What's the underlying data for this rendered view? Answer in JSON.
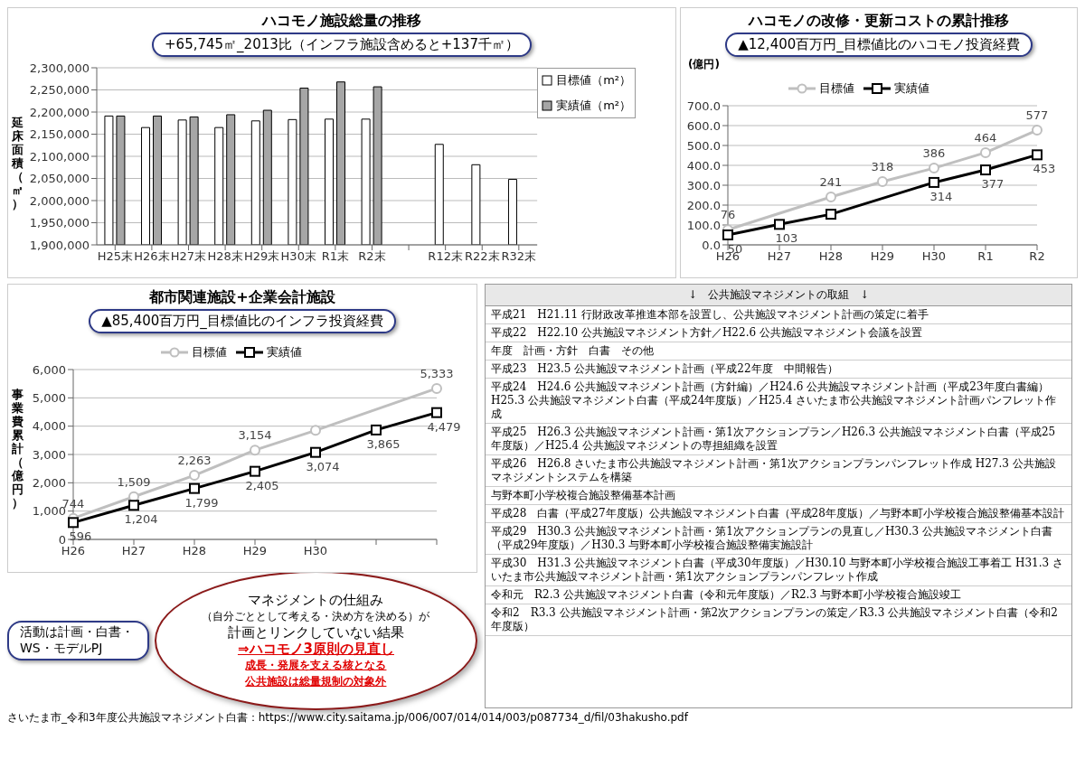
{
  "chart_data": [
    {
      "type": "bar",
      "title": "ハコモノ施設総量の推移",
      "ylabel": "延床面積（㎡）",
      "categories": [
        "H25末",
        "H26末",
        "H27末",
        "H28末",
        "H29末",
        "H30末",
        "R1末",
        "R2末",
        null,
        "R12末",
        "R22末",
        "R32末"
      ],
      "series": [
        {
          "name": "目標値（m²）",
          "color": "#ffffff",
          "values": [
            2191000,
            2165000,
            2182000,
            2165000,
            2180000,
            2183000,
            2184000,
            2184000,
            null,
            2127000,
            2081000,
            2048000
          ]
        },
        {
          "name": "実績値（m²）",
          "color": "#a6a6a6",
          "values": [
            2191000,
            2191000,
            2189000,
            2194000,
            2204000,
            2254000,
            2268000,
            2257000,
            null,
            null,
            null,
            null
          ]
        }
      ],
      "ylim": [
        1900000,
        2300000
      ],
      "yticks": [
        {
          "value": 1900000,
          "label": "1,900,000"
        },
        {
          "value": 1950000,
          "label": "1,950,000"
        },
        {
          "value": 2000000,
          "label": "2,000,000"
        },
        {
          "value": 2050000,
          "label": "2,050,000"
        },
        {
          "value": 2100000,
          "label": "2,100,000"
        },
        {
          "value": 2150000,
          "label": "2,150,000"
        },
        {
          "value": 2200000,
          "label": "2,200,000"
        },
        {
          "value": 2250000,
          "label": "2,250,000"
        },
        {
          "value": 2300000,
          "label": "2,300,000"
        }
      ],
      "grid": "y",
      "legend": "top right",
      "annotations": [
        "+65,745㎡_2013比（インフラ施設含めると+137千㎡）"
      ]
    },
    {
      "type": "line",
      "title": "ハコモノの改修・更新コストの累計推移",
      "ylabel": "(億円)",
      "categories": [
        "H26",
        "H27",
        "H28",
        "H29",
        "H30",
        "R1",
        "R2"
      ],
      "series": [
        {
          "name": "目標値",
          "color": "#bfbfbf",
          "marker": "circle",
          "values": [
            76,
            null,
            241,
            318,
            386,
            464,
            577
          ],
          "value_labels": [
            "76",
            null,
            "241",
            "318",
            "386",
            "464",
            "577"
          ]
        },
        {
          "name": "実績値",
          "color": "#000000",
          "marker": "square",
          "values": [
            50,
            103,
            154,
            null,
            314,
            377,
            453
          ],
          "value_labels": [
            "50",
            "103",
            null,
            null,
            "314",
            "377",
            "453"
          ]
        }
      ],
      "ylim": [
        0,
        700
      ],
      "yticks": [
        {
          "value": 0,
          "label": "0.0"
        },
        {
          "value": 100,
          "label": "100.0"
        },
        {
          "value": 200,
          "label": "200.0"
        },
        {
          "value": 300,
          "label": "300.0"
        },
        {
          "value": 400,
          "label": "400.0"
        },
        {
          "value": 500,
          "label": "500.0"
        },
        {
          "value": 600,
          "label": "600.0"
        },
        {
          "value": 700,
          "label": "700.0"
        }
      ],
      "grid": "y",
      "legend": "top",
      "annotations": [
        "▲12,400百万円_目標値比のハコモノ投資経費"
      ]
    },
    {
      "type": "line",
      "title": "都市関連施設+企業会計施設",
      "ylabel": "事業費累計（億円）",
      "categories": [
        "H26",
        "H27",
        "H28",
        "H29",
        "H30",
        null,
        null
      ],
      "series": [
        {
          "name": "目標値",
          "color": "#bfbfbf",
          "marker": "circle",
          "values": [
            744,
            1509,
            2263,
            3154,
            3850,
            null,
            5333
          ],
          "value_labels": [
            "744",
            "1,509",
            "2,263",
            "3,154",
            null,
            null,
            "5,333"
          ]
        },
        {
          "name": "実績値",
          "color": "#000000",
          "marker": "square",
          "values": [
            596,
            1204,
            1799,
            2405,
            3074,
            3865,
            4479
          ],
          "value_labels": [
            "596",
            "1,204",
            "1,799",
            "2,405",
            "3,074",
            "3,865",
            "4,479"
          ]
        }
      ],
      "ylim": [
        0,
        6000
      ],
      "yticks": [
        0,
        {
          "value": 1000,
          "label": "1,000"
        },
        {
          "value": 2000,
          "label": "2,000"
        },
        {
          "value": 3000,
          "label": "3,000"
        },
        {
          "value": 4000,
          "label": "4,000"
        },
        {
          "value": 5000,
          "label": "5,000"
        },
        {
          "value": 6000,
          "label": "6,000"
        }
      ],
      "grid": "y",
      "legend": "top",
      "annotations": [
        "▲85,400百万円_目標値比のインフラ投資経費"
      ]
    },
    {
      "type": "other",
      "title": "↓　公共施設マネジメントの取組　↓",
      "annotations": [
        "平成21　H21.11 行財政改革推進本部を設置し、公共施設マネジメント計画の策定に着手",
        "平成22　H22.10 公共施設マネジメント方針／H22.6 公共施設マネジメント会議を設置",
        "年度　計画・方針　白書　その他",
        "平成23　H23.5 公共施設マネジメント計画（平成22年度　中間報告）",
        "平成24　H24.6 公共施設マネジメント計画（方針編）／H24.6 公共施設マネジメント計画（平成23年度白書編）H25.3 公共施設マネジメント白書（平成24年度版）／H25.4 さいたま市公共施設マネジメント計画パンフレット作成",
        "平成25　H26.3 公共施設マネジメント計画・第1次アクションプラン／H26.3 公共施設マネジメント白書（平成25年度版）／H25.4 公共施設マネジメントの専担組織を設置",
        "平成26　H26.8 さいたま市公共施設マネジメント計画・第1次アクションプランパンフレット作成 H27.3 公共施設マネジメントシステムを構築",
        "与野本町小学校複合施設整備基本計画",
        "平成28　白書（平成27年度版）公共施設マネジメント白書（平成28年度版）／与野本町小学校複合施設整備基本設計",
        "平成29　H30.3 公共施設マネジメント計画・第1次アクションプランの見直し／H30.3 公共施設マネジメント白書（平成29年度版）／H30.3 与野本町小学校複合施設整備実施設計",
        "平成30　H31.3 公共施設マネジメント白書（平成30年度版）／H30.10 与野本町小学校複合施設工事着工 H31.3 さいたま市公共施設マネジメント計画・第1次アクションプランパンフレット作成",
        "令和元　R2.3 公共施設マネジメント白書（令和元年度版）／R2.3 与野本町小学校複合施設竣工",
        "令和2　R3.3 公共施設マネジメント計画・第2次アクションプランの策定／R3.3 公共施設マネジメント白書（令和2年度版）"
      ]
    },
    {
      "type": "other",
      "annotations": [
        "活動は計画・白書・WS・モデルPJ",
        "マネジメントの仕組み",
        "（自分ごととして考える・決め方を決める）が",
        "計画とリンクしていない結果",
        "⇒ハコモノ3原則の見直し",
        "成長・発展を支える核となる",
        "公共施設は総量規制の対象外"
      ]
    },
    {
      "type": "other",
      "annotations": [
        "さいたま市_令和3年度公共施設マネジメント白書：https://www.city.saitama.jp/006/007/014/014/003/p087734_d/fil/03hakusho.pdf"
      ]
    }
  ]
}
